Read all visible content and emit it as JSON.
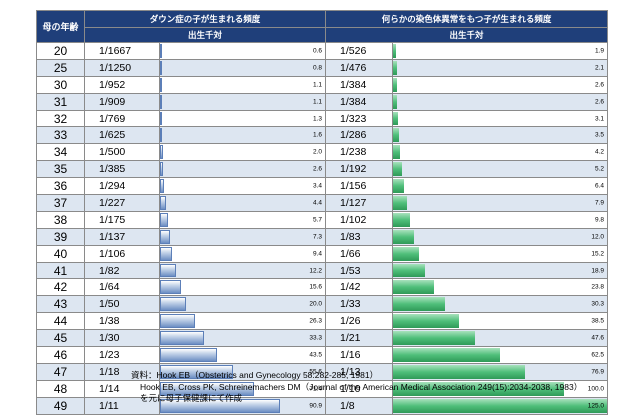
{
  "table": {
    "age_header": "母の年齢",
    "down_header": "ダウン症の子が生まれる頻度",
    "chrom_header": "何らかの染色体異常をもつ子が生まれる頻度",
    "per_birth_label": "出生千対"
  },
  "rows": [
    {
      "age": "20",
      "down_frac": "1/1667",
      "down_val": "0.6",
      "chrom_frac": "1/526",
      "chrom_val": "1.9"
    },
    {
      "age": "25",
      "down_frac": "1/1250",
      "down_val": "0.8",
      "chrom_frac": "1/476",
      "chrom_val": "2.1"
    },
    {
      "age": "30",
      "down_frac": "1/952",
      "down_val": "1.1",
      "chrom_frac": "1/384",
      "chrom_val": "2.6"
    },
    {
      "age": "31",
      "down_frac": "1/909",
      "down_val": "1.1",
      "chrom_frac": "1/384",
      "chrom_val": "2.6"
    },
    {
      "age": "32",
      "down_frac": "1/769",
      "down_val": "1.3",
      "chrom_frac": "1/323",
      "chrom_val": "3.1"
    },
    {
      "age": "33",
      "down_frac": "1/625",
      "down_val": "1.6",
      "chrom_frac": "1/286",
      "chrom_val": "3.5"
    },
    {
      "age": "34",
      "down_frac": "1/500",
      "down_val": "2.0",
      "chrom_frac": "1/238",
      "chrom_val": "4.2"
    },
    {
      "age": "35",
      "down_frac": "1/385",
      "down_val": "2.6",
      "chrom_frac": "1/192",
      "chrom_val": "5.2"
    },
    {
      "age": "36",
      "down_frac": "1/294",
      "down_val": "3.4",
      "chrom_frac": "1/156",
      "chrom_val": "6.4"
    },
    {
      "age": "37",
      "down_frac": "1/227",
      "down_val": "4.4",
      "chrom_frac": "1/127",
      "chrom_val": "7.9"
    },
    {
      "age": "38",
      "down_frac": "1/175",
      "down_val": "5.7",
      "chrom_frac": "1/102",
      "chrom_val": "9.8"
    },
    {
      "age": "39",
      "down_frac": "1/137",
      "down_val": "7.3",
      "chrom_frac": "1/83",
      "chrom_val": "12.0"
    },
    {
      "age": "40",
      "down_frac": "1/106",
      "down_val": "9.4",
      "chrom_frac": "1/66",
      "chrom_val": "15.2"
    },
    {
      "age": "41",
      "down_frac": "1/82",
      "down_val": "12.2",
      "chrom_frac": "1/53",
      "chrom_val": "18.9"
    },
    {
      "age": "42",
      "down_frac": "1/64",
      "down_val": "15.6",
      "chrom_frac": "1/42",
      "chrom_val": "23.8"
    },
    {
      "age": "43",
      "down_frac": "1/50",
      "down_val": "20.0",
      "chrom_frac": "1/33",
      "chrom_val": "30.3"
    },
    {
      "age": "44",
      "down_frac": "1/38",
      "down_val": "26.3",
      "chrom_frac": "1/26",
      "chrom_val": "38.5"
    },
    {
      "age": "45",
      "down_frac": "1/30",
      "down_val": "33.3",
      "chrom_frac": "1/21",
      "chrom_val": "47.6"
    },
    {
      "age": "46",
      "down_frac": "1/23",
      "down_val": "43.5",
      "chrom_frac": "1/16",
      "chrom_val": "62.5"
    },
    {
      "age": "47",
      "down_frac": "1/18",
      "down_val": "55.6",
      "chrom_frac": "1/13",
      "chrom_val": "76.9"
    },
    {
      "age": "48",
      "down_frac": "1/14",
      "down_val": "71.4",
      "chrom_frac": "1/10",
      "chrom_val": "100.0"
    },
    {
      "age": "49",
      "down_frac": "1/11",
      "down_val": "90.9",
      "chrom_frac": "1/8",
      "chrom_val": "125.0"
    }
  ],
  "chart_data": {
    "type": "table",
    "categories": [
      "20",
      "25",
      "30",
      "31",
      "32",
      "33",
      "34",
      "35",
      "36",
      "37",
      "38",
      "39",
      "40",
      "41",
      "42",
      "43",
      "44",
      "45",
      "46",
      "47",
      "48",
      "49"
    ],
    "series": [
      {
        "name": "ダウン症の子が生まれる頻度",
        "values": [
          0.6,
          0.8,
          1.1,
          1.1,
          1.3,
          1.6,
          2.0,
          2.6,
          3.4,
          4.4,
          5.7,
          7.3,
          9.4,
          12.2,
          15.6,
          20.0,
          26.3,
          33.3,
          43.5,
          55.6,
          71.4,
          90.9
        ]
      },
      {
        "name": "何らかの染色体異常をもつ子が生まれる頻度",
        "values": [
          1.9,
          2.1,
          2.6,
          2.6,
          3.1,
          3.5,
          4.2,
          5.2,
          6.4,
          7.9,
          9.8,
          12.0,
          15.2,
          18.9,
          23.8,
          30.3,
          38.5,
          47.6,
          62.5,
          76.9,
          100.0,
          125.0
        ]
      }
    ],
    "colors": {
      "down_bar": "#6d8fc4",
      "chrom_bar": "#4fbf7a",
      "header_bg": "#1f3f7a",
      "stripe": "#dde6f1"
    },
    "xmax": 125.0
  },
  "source": {
    "line1": "資料：Hook EB（Obstetrics and Gynecology 58:282-285, 1981）",
    "line2": "Hook EB, Cross PK, Schreinemachers DM（Journal of the American Medical Association 249(15):2034-2038, 1983）",
    "line3": "を元に母子保健課にて作成"
  }
}
